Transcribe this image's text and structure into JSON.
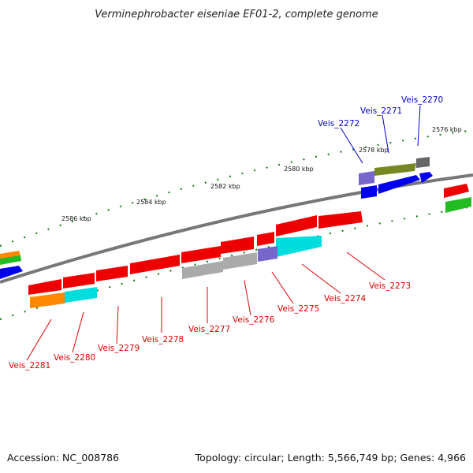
{
  "title": "Verminephrobacter eiseniae EF01-2, complete genome",
  "footer": {
    "accession": "Accession: NC_008786",
    "summary": "Topology: circular; Length: 5,566,749 bp; Genes: 4,966"
  },
  "kbp_ticks": [
    {
      "label": "2576 kbp"
    },
    {
      "label": "2578 kbp"
    },
    {
      "label": "2580 kbp"
    },
    {
      "label": "2582 kbp"
    },
    {
      "label": "2584 kbp"
    },
    {
      "label": "2586 kbp"
    }
  ],
  "gene_labels_top": [
    {
      "label": "Veis_2270",
      "color": "#0000cc"
    },
    {
      "label": "Veis_2271",
      "color": "#0000cc"
    },
    {
      "label": "Veis_2272",
      "color": "#0000cc"
    }
  ],
  "gene_labels_bottom": [
    {
      "label": "Veis_2273",
      "color": "#dd0000"
    },
    {
      "label": "Veis_2274",
      "color": "#dd0000"
    },
    {
      "label": "Veis_2275",
      "color": "#dd0000"
    },
    {
      "label": "Veis_2276",
      "color": "#dd0000"
    },
    {
      "label": "Veis_2277",
      "color": "#dd0000"
    },
    {
      "label": "Veis_2278",
      "color": "#dd0000"
    },
    {
      "label": "Veis_2279",
      "color": "#dd0000"
    },
    {
      "label": "Veis_2280",
      "color": "#dd0000"
    },
    {
      "label": "Veis_2281",
      "color": "#dd0000"
    }
  ],
  "colors": {
    "red": "#ee0000",
    "blue": "#0000ee",
    "orange": "#ff8800",
    "cyan": "#00dddd",
    "green": "#22bb22",
    "olive": "#778822",
    "purple": "#7766cc",
    "gray": "#aaaaaa",
    "darkgray": "#666666",
    "tick": "#117711"
  }
}
